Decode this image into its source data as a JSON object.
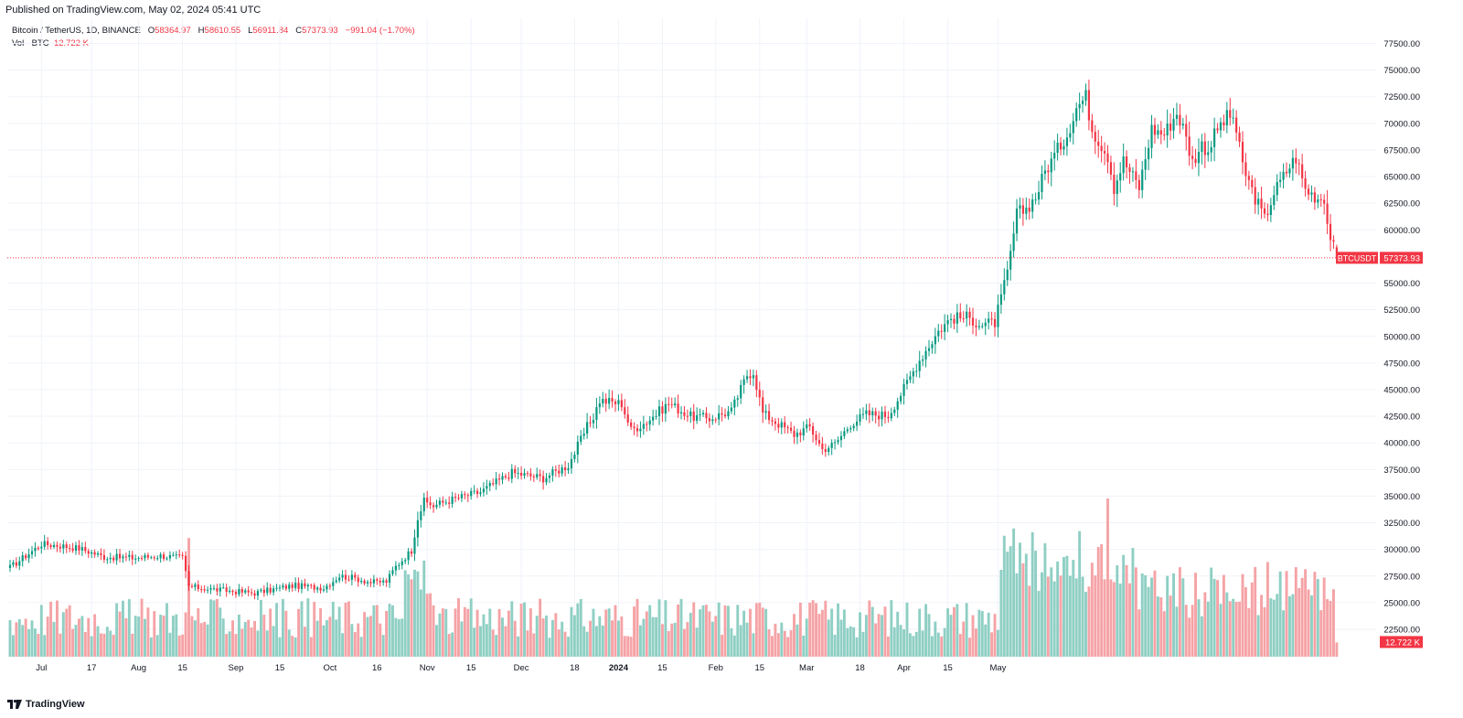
{
  "published": "Published on TradingView.com, May 02, 2024 05:41 UTC",
  "legend": {
    "symbol": "Bitcoin / TetherUS, 1D, BINANCE",
    "o_label": "O",
    "o": "58364.97",
    "h_label": "H",
    "h": "58610.55",
    "l_label": "L",
    "l": "56911.84",
    "c_label": "C",
    "c": "57373.93",
    "change": "−991.04 (−1.70%)",
    "vol_label": "Vol · BTC",
    "vol": "12.722 K"
  },
  "price_tag": {
    "symbol": "BTCUSDT",
    "value": "57373.93"
  },
  "volume_tag": "12.722 K",
  "brand": "TradingView",
  "colors": {
    "up": "#089981",
    "down": "#f23645",
    "vol_up": "#8fcfc4",
    "vol_down": "#f5a3a6",
    "grid": "#f0f3fa"
  },
  "chart_data": {
    "type": "candlestick",
    "title": "Bitcoin / TetherUS, 1D, BINANCE",
    "ylim": [
      21000,
      78300
    ],
    "y_ticks": [
      "77500.00",
      "75000.00",
      "72500.00",
      "70000.00",
      "67500.00",
      "65000.00",
      "62500.00",
      "60000.00",
      "55000.00",
      "52500.00",
      "50000.00",
      "47500.00",
      "45000.00",
      "42500.00",
      "40000.00",
      "37500.00",
      "35000.00",
      "32500.00",
      "30000.00",
      "27500.00",
      "25000.00",
      "22500.00"
    ],
    "x_ticks": [
      "Jul",
      "17",
      "Aug",
      "15",
      "Sep",
      "15",
      "Oct",
      "16",
      "Nov",
      "15",
      "Dec",
      "18",
      "2024",
      "15",
      "Feb",
      "15",
      "Mar",
      "18",
      "Apr",
      "15",
      "May"
    ],
    "last_price": 57373.93,
    "series_start": "2023-06-21",
    "anchors": [
      [
        0,
        28300
      ],
      [
        10,
        30500
      ],
      [
        15,
        30400
      ],
      [
        22,
        30100
      ],
      [
        30,
        29300
      ],
      [
        40,
        29200
      ],
      [
        48,
        29400
      ],
      [
        55,
        29200
      ],
      [
        57,
        26500
      ],
      [
        63,
        26300
      ],
      [
        70,
        26100
      ],
      [
        78,
        25900
      ],
      [
        85,
        26300
      ],
      [
        90,
        26600
      ],
      [
        100,
        26400
      ],
      [
        105,
        27500
      ],
      [
        110,
        27300
      ],
      [
        115,
        26900
      ],
      [
        120,
        27000
      ],
      [
        123,
        28400
      ],
      [
        128,
        29900
      ],
      [
        130,
        33000
      ],
      [
        132,
        34500
      ],
      [
        135,
        34100
      ],
      [
        140,
        34600
      ],
      [
        150,
        35400
      ],
      [
        160,
        37200
      ],
      [
        170,
        36700
      ],
      [
        178,
        37900
      ],
      [
        184,
        41500
      ],
      [
        186,
        42500
      ],
      [
        188,
        44000
      ],
      [
        195,
        43700
      ],
      [
        198,
        41200
      ],
      [
        203,
        42000
      ],
      [
        210,
        43700
      ],
      [
        217,
        42500
      ],
      [
        223,
        42300
      ],
      [
        230,
        43000
      ],
      [
        235,
        46400
      ],
      [
        237,
        46700
      ],
      [
        240,
        42800
      ],
      [
        245,
        41800
      ],
      [
        250,
        40800
      ],
      [
        255,
        41500
      ],
      [
        259,
        39400
      ],
      [
        263,
        39900
      ],
      [
        268,
        41800
      ],
      [
        273,
        42700
      ],
      [
        280,
        42600
      ],
      [
        285,
        45100
      ],
      [
        290,
        47800
      ],
      [
        296,
        50500
      ],
      [
        300,
        51700
      ],
      [
        305,
        51800
      ],
      [
        310,
        51100
      ],
      [
        314,
        51300
      ],
      [
        318,
        55900
      ],
      [
        321,
        61500
      ],
      [
        324,
        62000
      ],
      [
        327,
        63100
      ],
      [
        330,
        65500
      ],
      [
        334,
        67500
      ],
      [
        337,
        69000
      ],
      [
        340,
        71500
      ],
      [
        343,
        72500
      ],
      [
        345,
        69500
      ],
      [
        350,
        67000
      ],
      [
        352,
        64000
      ],
      [
        355,
        66500
      ],
      [
        360,
        64000
      ],
      [
        364,
        69500
      ],
      [
        368,
        69000
      ],
      [
        372,
        71000
      ],
      [
        374,
        69600
      ],
      [
        377,
        66400
      ],
      [
        380,
        68000
      ],
      [
        382,
        67500
      ],
      [
        385,
        69500
      ],
      [
        388,
        70500
      ],
      [
        390,
        70700
      ],
      [
        393,
        66000
      ],
      [
        396,
        63700
      ],
      [
        400,
        61000
      ],
      [
        403,
        63500
      ],
      [
        405,
        64500
      ],
      [
        408,
        66000
      ],
      [
        410,
        66800
      ],
      [
        413,
        63800
      ],
      [
        417,
        63000
      ],
      [
        419,
        63100
      ],
      [
        420,
        60600
      ],
      [
        422,
        58300
      ],
      [
        423,
        57374
      ]
    ]
  }
}
